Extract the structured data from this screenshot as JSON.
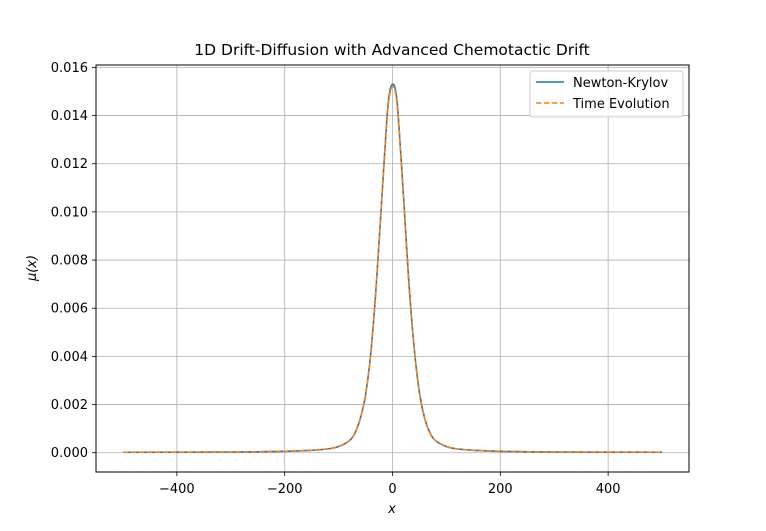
{
  "chart_data": {
    "type": "line",
    "title": "1D Drift-Diffusion with Advanced Chemotactic Drift",
    "xlabel": "x",
    "ylabel": "μ(x)",
    "xlim": [
      -550,
      550
    ],
    "ylim": [
      -0.0008,
      0.0161
    ],
    "grid": true,
    "legend_position": "top-right",
    "x_ticks": [
      -400,
      -200,
      0,
      200,
      400
    ],
    "x_tick_labels": [
      "−400",
      "−200",
      "0",
      "200",
      "400"
    ],
    "y_ticks": [
      0.0,
      0.002,
      0.004,
      0.006,
      0.008,
      0.01,
      0.012,
      0.014,
      0.016
    ],
    "y_tick_labels": [
      "0.000",
      "0.002",
      "0.004",
      "0.006",
      "0.008",
      "0.010",
      "0.012",
      "0.014",
      "0.016"
    ],
    "series": [
      {
        "name": "Newton-Krylov",
        "color": "#1f77b4",
        "style": "solid",
        "x": [
          -500,
          -300,
          -200,
          -150,
          -120,
          -100,
          -80,
          -70,
          -60,
          -50,
          -40,
          -30,
          -20,
          -10,
          -5,
          0,
          5,
          10,
          20,
          30,
          40,
          50,
          60,
          70,
          80,
          100,
          120,
          150,
          200,
          300,
          500
        ],
        "y": [
          2e-05,
          3e-05,
          6e-05,
          0.0001,
          0.00016,
          0.00026,
          0.0005,
          0.0008,
          0.0014,
          0.0024,
          0.0042,
          0.007,
          0.0105,
          0.014,
          0.015,
          0.0153,
          0.0151,
          0.0142,
          0.0108,
          0.0072,
          0.0044,
          0.0025,
          0.0014,
          0.0008,
          0.0005,
          0.00026,
          0.00016,
          0.0001,
          6e-05,
          3e-05,
          2e-05
        ]
      },
      {
        "name": "Time Evolution",
        "color": "#ff7f0e",
        "style": "dashed",
        "x": [
          -500,
          -300,
          -200,
          -150,
          -120,
          -100,
          -80,
          -70,
          -60,
          -50,
          -40,
          -30,
          -20,
          -10,
          -5,
          0,
          5,
          10,
          20,
          30,
          40,
          50,
          60,
          70,
          80,
          100,
          120,
          150,
          200,
          300,
          500
        ],
        "y": [
          2e-05,
          3e-05,
          6e-05,
          0.0001,
          0.00016,
          0.00026,
          0.0005,
          0.0008,
          0.0014,
          0.0024,
          0.0042,
          0.007,
          0.0105,
          0.0139,
          0.0149,
          0.0152,
          0.015,
          0.0141,
          0.0107,
          0.0071,
          0.0044,
          0.0025,
          0.0014,
          0.0008,
          0.0005,
          0.00026,
          0.00016,
          0.0001,
          6e-05,
          3e-05,
          2e-05
        ]
      }
    ]
  }
}
